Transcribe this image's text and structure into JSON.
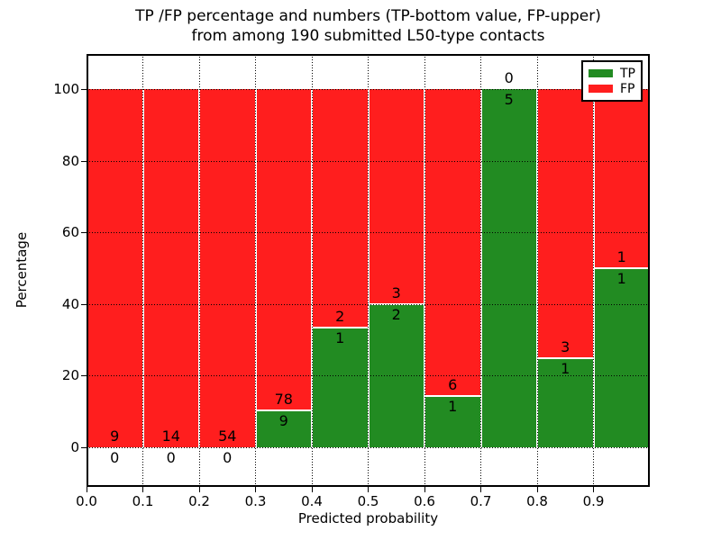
{
  "chart_data": {
    "type": "bar",
    "stacked": true,
    "title": "TP /FP percentage and numbers (TP-bottom value, FP-upper) from among 190 submitted L50-type contacts",
    "title_line1": "TP /FP percentage and numbers (TP-bottom value, FP-upper)",
    "title_line2": "from among 190 submitted L50-type contacts",
    "xlabel": "Predicted probability",
    "ylabel": "Percentage",
    "x_ticks": [
      "0.0",
      "0.1",
      "0.2",
      "0.3",
      "0.4",
      "0.5",
      "0.6",
      "0.7",
      "0.8",
      "0.9"
    ],
    "y_ticks": [
      0,
      20,
      40,
      60,
      80,
      100
    ],
    "xlim": [
      0.0,
      1.0
    ],
    "ylim": [
      -11,
      110
    ],
    "grid": "dotted, drawn over bars",
    "legend_position": "upper right",
    "colors": {
      "tp": "#228B22",
      "fp": "#FF1E1E",
      "grid": "#000000"
    },
    "legend": [
      {
        "label": "TP",
        "color": "#228B22"
      },
      {
        "label": "FP",
        "color": "#FF1E1E"
      }
    ],
    "bins": [
      {
        "range": "0.0-0.1",
        "tp": 0,
        "fp": 9,
        "tp_pct": 0.0
      },
      {
        "range": "0.1-0.2",
        "tp": 0,
        "fp": 14,
        "tp_pct": 0.0
      },
      {
        "range": "0.2-0.3",
        "tp": 0,
        "fp": 54,
        "tp_pct": 0.0
      },
      {
        "range": "0.3-0.4",
        "tp": 9,
        "fp": 78,
        "tp_pct": 10.34
      },
      {
        "range": "0.4-0.5",
        "tp": 1,
        "fp": 2,
        "tp_pct": 33.33
      },
      {
        "range": "0.5-0.6",
        "tp": 2,
        "fp": 3,
        "tp_pct": 40.0
      },
      {
        "range": "0.6-0.7",
        "tp": 1,
        "fp": 6,
        "tp_pct": 14.29
      },
      {
        "range": "0.7-0.8",
        "tp": 5,
        "fp": 0,
        "tp_pct": 100.0
      },
      {
        "range": "0.8-0.9",
        "tp": 1,
        "fp": 3,
        "tp_pct": 25.0
      },
      {
        "range": "0.9-1.0",
        "tp": 1,
        "fp": 1,
        "tp_pct": 50.0
      }
    ]
  }
}
